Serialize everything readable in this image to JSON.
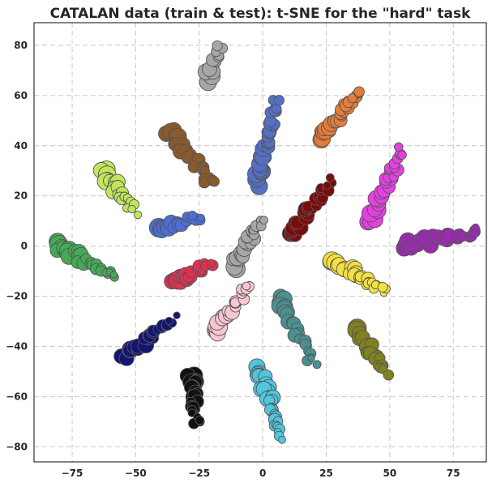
{
  "chart_data": {
    "type": "scatter",
    "title": "CATALAN data (train & test): t-SNE for the \"hard\" task",
    "xlabel": "",
    "ylabel": "",
    "xlim": [
      -90,
      88
    ],
    "ylim": [
      -86,
      89
    ],
    "xticks": [
      -75,
      -50,
      -25,
      0,
      25,
      50,
      75
    ],
    "yticks": [
      -80,
      -60,
      -40,
      -20,
      0,
      20,
      40,
      60,
      80
    ],
    "xtick_labels": [
      "−75",
      "−50",
      "−25",
      "0",
      "25",
      "50",
      "75"
    ],
    "ytick_labels": [
      "−80",
      "−60",
      "−40",
      "−20",
      "0",
      "20",
      "40",
      "60",
      "80"
    ],
    "grid": true,
    "legend": "none",
    "clusters": [
      {
        "color": "#a6a6a6",
        "start": [
          -22,
          66
        ],
        "end": [
          -17,
          80
        ],
        "count": 14
      },
      {
        "color": "#e57c3a",
        "start": [
          22,
          43
        ],
        "end": [
          38,
          61
        ],
        "count": 30
      },
      {
        "color": "#5470c6",
        "start": [
          -2,
          25
        ],
        "end": [
          5,
          58
        ],
        "count": 38
      },
      {
        "color": "#8b5a2b",
        "start": [
          -37,
          46
        ],
        "end": [
          -20,
          25
        ],
        "count": 26
      },
      {
        "color": "#c1e65a",
        "start": [
          -63,
          30
        ],
        "end": [
          -50,
          14
        ],
        "count": 22
      },
      {
        "color": "#e440e0",
        "start": [
          42,
          10
        ],
        "end": [
          55,
          38
        ],
        "count": 30
      },
      {
        "color": "#7a0b0b",
        "start": [
          10,
          4
        ],
        "end": [
          27,
          26
        ],
        "count": 28
      },
      {
        "color": "#9b2ab0",
        "start": [
          55,
          0
        ],
        "end": [
          85,
          6
        ],
        "count": 32
      },
      {
        "color": "#44aa55",
        "start": [
          -82,
          1
        ],
        "end": [
          -58,
          -12
        ],
        "count": 30
      },
      {
        "color": "#e03050",
        "start": [
          -36,
          -15
        ],
        "end": [
          -20,
          -7
        ],
        "count": 22
      },
      {
        "color": "#f4e040",
        "start": [
          28,
          -6
        ],
        "end": [
          48,
          -18
        ],
        "count": 28
      },
      {
        "color": "#f7c6cf",
        "start": [
          -20,
          -35
        ],
        "end": [
          -5,
          -15
        ],
        "count": 24
      },
      {
        "color": "#4a9090",
        "start": [
          6,
          -20
        ],
        "end": [
          20,
          -47
        ],
        "count": 26
      },
      {
        "color": "#141473",
        "start": [
          -54,
          -44
        ],
        "end": [
          -35,
          -29
        ],
        "count": 24
      },
      {
        "color": "#808020",
        "start": [
          37,
          -34
        ],
        "end": [
          49,
          -50
        ],
        "count": 22
      },
      {
        "color": "#111111",
        "start": [
          -28,
          -51
        ],
        "end": [
          -26,
          -70
        ],
        "count": 26
      },
      {
        "color": "#4fc6e0",
        "start": [
          -2,
          -48
        ],
        "end": [
          8,
          -77
        ],
        "count": 32
      },
      {
        "color": "#a6a6a6",
        "start": [
          -12,
          -8
        ],
        "end": [
          0,
          10
        ],
        "count": 28
      },
      {
        "color": "#4c6ed8",
        "start": [
          -42,
          6
        ],
        "end": [
          -24,
          12
        ],
        "count": 18
      }
    ]
  }
}
